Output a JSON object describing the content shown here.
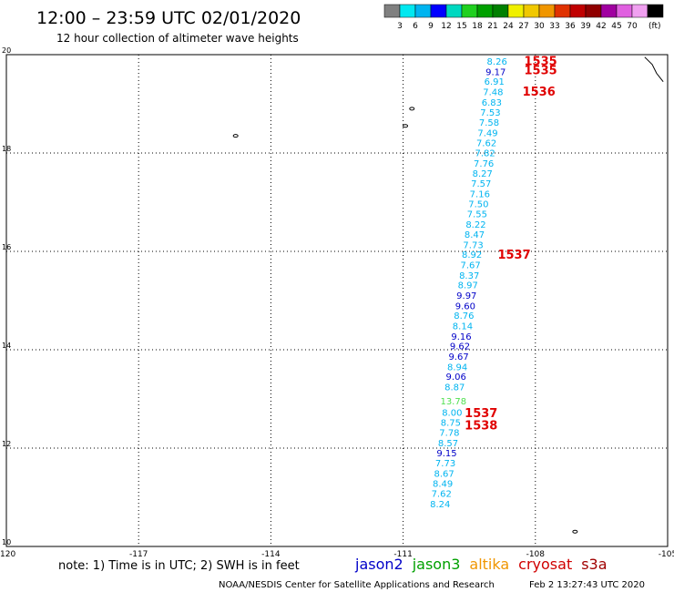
{
  "header": {
    "title": "12:00 – 23:59 UTC 02/01/2020",
    "subtitle": "12 hour collection of altimeter wave heights"
  },
  "color_scale": {
    "unit": "(ft)",
    "ticks": [
      "3",
      "6",
      "9",
      "12",
      "15",
      "18",
      "21",
      "24",
      "27",
      "30",
      "33",
      "36",
      "39",
      "42",
      "45",
      "70"
    ],
    "colors": [
      "#808080",
      "#00e8f0",
      "#00b4f0",
      "#0000ff",
      "#00d8c0",
      "#20d020",
      "#00a000",
      "#008000",
      "#f0f000",
      "#f0c800",
      "#f09600",
      "#e03200",
      "#c00000",
      "#900000",
      "#a000a0",
      "#e060e0",
      "#f0a0f0",
      "#000000"
    ]
  },
  "footer": {
    "note": "note: 1) Time is in UTC; 2) SWH is in feet",
    "credit": "NOAA/NESDIS Center for Satellite Applications and Research",
    "timestamp": "Feb  2 13:27:43 UTC 2020"
  },
  "legend": [
    {
      "name": "jason2",
      "color": "#0000c8"
    },
    {
      "name": "jason3",
      "color": "#00a000"
    },
    {
      "name": "altika",
      "color": "#f09600"
    },
    {
      "name": "cryosat",
      "color": "#d00000"
    },
    {
      "name": "s3a",
      "color": "#a00000"
    }
  ],
  "chart_data": {
    "type": "scatter",
    "x_ticks": [
      "-120",
      "-117",
      "-114",
      "-111",
      "-108",
      "-105"
    ],
    "y_ticks": [
      "10",
      "12",
      "14",
      "16",
      "18",
      "20"
    ],
    "xlim": [
      -120,
      -105
    ],
    "ylim": [
      10,
      20
    ],
    "grid": true,
    "points": [
      {
        "lon": -108.87,
        "lat": 19.87,
        "label": "8.26",
        "color": "#00b4f0"
      },
      {
        "lon": -108.9,
        "lat": 19.66,
        "label": "9.17",
        "color": "#0000c8"
      },
      {
        "lon": -108.93,
        "lat": 19.46,
        "label": "6.91",
        "color": "#00b4f0"
      },
      {
        "lon": -108.96,
        "lat": 19.25,
        "label": "7.48",
        "color": "#00b4f0"
      },
      {
        "lon": -108.99,
        "lat": 19.04,
        "label": "6.83",
        "color": "#00b4f0"
      },
      {
        "lon": -109.02,
        "lat": 18.83,
        "label": "7.53",
        "color": "#00b4f0"
      },
      {
        "lon": -109.05,
        "lat": 18.63,
        "label": "7.58",
        "color": "#00b4f0"
      },
      {
        "lon": -109.08,
        "lat": 18.42,
        "label": "7.49",
        "color": "#00b4f0"
      },
      {
        "lon": -109.11,
        "lat": 18.21,
        "label": "7.62",
        "color": "#00b4f0"
      },
      {
        "lon": -109.14,
        "lat": 18.01,
        "label": "7.82",
        "color": "#00b4f0"
      },
      {
        "lon": -109.17,
        "lat": 17.8,
        "label": "7.76",
        "color": "#00b4f0"
      },
      {
        "lon": -109.2,
        "lat": 17.59,
        "label": "8.27",
        "color": "#00b4f0"
      },
      {
        "lon": -109.23,
        "lat": 17.39,
        "label": "7.57",
        "color": "#00b4f0"
      },
      {
        "lon": -109.26,
        "lat": 17.18,
        "label": "7.16",
        "color": "#00b4f0"
      },
      {
        "lon": -109.29,
        "lat": 16.97,
        "label": "7.50",
        "color": "#00b4f0"
      },
      {
        "lon": -109.32,
        "lat": 16.77,
        "label": "7.55",
        "color": "#00b4f0"
      },
      {
        "lon": -109.35,
        "lat": 16.56,
        "label": "8.22",
        "color": "#00b4f0"
      },
      {
        "lon": -109.38,
        "lat": 16.35,
        "label": "8.47",
        "color": "#00b4f0"
      },
      {
        "lon": -109.41,
        "lat": 16.14,
        "label": "7.73",
        "color": "#00b4f0"
      },
      {
        "lon": -109.44,
        "lat": 15.94,
        "label": "8.92",
        "color": "#00b4f0"
      },
      {
        "lon": -109.47,
        "lat": 15.73,
        "label": "7.67",
        "color": "#00b4f0"
      },
      {
        "lon": -109.5,
        "lat": 15.52,
        "label": "8.37",
        "color": "#00b4f0"
      },
      {
        "lon": -109.53,
        "lat": 15.32,
        "label": "8.97",
        "color": "#00b4f0"
      },
      {
        "lon": -109.56,
        "lat": 15.11,
        "label": "9.97",
        "color": "#0000c8"
      },
      {
        "lon": -109.59,
        "lat": 14.9,
        "label": "9.60",
        "color": "#0000c8"
      },
      {
        "lon": -109.62,
        "lat": 14.7,
        "label": "8.76",
        "color": "#00b4f0"
      },
      {
        "lon": -109.65,
        "lat": 14.49,
        "label": "8.14",
        "color": "#00b4f0"
      },
      {
        "lon": -109.68,
        "lat": 14.28,
        "label": "9.16",
        "color": "#0000c8"
      },
      {
        "lon": -109.71,
        "lat": 14.08,
        "label": "9.62",
        "color": "#0000c8"
      },
      {
        "lon": -109.74,
        "lat": 13.87,
        "label": "9.67",
        "color": "#0000c8"
      },
      {
        "lon": -109.77,
        "lat": 13.66,
        "label": "8.94",
        "color": "#00b4f0"
      },
      {
        "lon": -109.8,
        "lat": 13.46,
        "label": "9.06",
        "color": "#0000c8"
      },
      {
        "lon": -109.83,
        "lat": 13.25,
        "label": "8.87",
        "color": "#00b4f0"
      },
      {
        "lon": -109.86,
        "lat": 12.96,
        "label": "13.78",
        "color": "#50e050"
      },
      {
        "lon": -109.89,
        "lat": 12.73,
        "label": "8.00",
        "color": "#00b4f0"
      },
      {
        "lon": -109.92,
        "lat": 12.53,
        "label": "8.75",
        "color": "#00b4f0"
      },
      {
        "lon": -109.95,
        "lat": 12.32,
        "label": "7.78",
        "color": "#00b4f0"
      },
      {
        "lon": -109.98,
        "lat": 12.11,
        "label": "8.57",
        "color": "#00b4f0"
      },
      {
        "lon": -110.01,
        "lat": 11.91,
        "label": "9.15",
        "color": "#0000c8"
      },
      {
        "lon": -110.04,
        "lat": 11.7,
        "label": "7.73",
        "color": "#00b4f0"
      },
      {
        "lon": -110.07,
        "lat": 11.49,
        "label": "8.67",
        "color": "#00b4f0"
      },
      {
        "lon": -110.1,
        "lat": 11.29,
        "label": "8.49",
        "color": "#00b4f0"
      },
      {
        "lon": -110.13,
        "lat": 11.08,
        "label": "7.62",
        "color": "#00b4f0"
      },
      {
        "lon": -110.16,
        "lat": 10.87,
        "label": "8.24",
        "color": "#00b4f0"
      }
    ],
    "time_labels": [
      {
        "lon": -107.88,
        "lat": 19.88,
        "label": "1535"
      },
      {
        "lon": -107.88,
        "lat": 19.69,
        "label": "1535"
      },
      {
        "lon": -107.92,
        "lat": 19.26,
        "label": "1536"
      },
      {
        "lon": -108.48,
        "lat": 15.94,
        "label": "1537"
      },
      {
        "lon": -109.23,
        "lat": 12.72,
        "label": "1537"
      },
      {
        "lon": -109.23,
        "lat": 12.47,
        "label": "1538"
      }
    ],
    "time_label_color": "#e00000",
    "islands": [
      {
        "lon": -114.8,
        "lat": 18.35
      },
      {
        "lon": -110.8,
        "lat": 18.9
      },
      {
        "lon": -110.95,
        "lat": 18.55
      },
      {
        "lon": -107.1,
        "lat": 10.3
      }
    ],
    "coastline": [
      {
        "lon": -105.52,
        "lat": 19.95
      },
      {
        "lon": -105.35,
        "lat": 19.8
      },
      {
        "lon": -105.25,
        "lat": 19.62
      },
      {
        "lon": -105.1,
        "lat": 19.45
      }
    ]
  }
}
